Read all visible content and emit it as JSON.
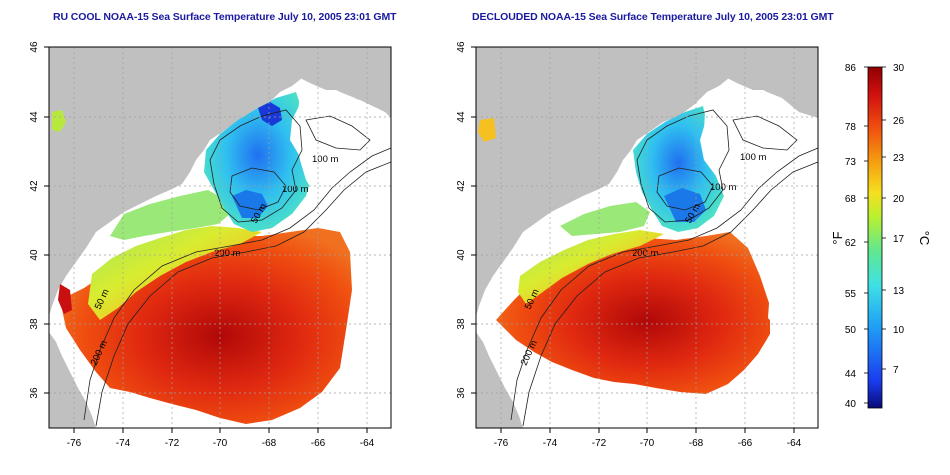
{
  "panels": [
    {
      "title": "RU COOL NOAA-15 Sea Surface Temperature July 10, 2005 23:01 GMT",
      "x_ticks": [
        "-76",
        "-74",
        "-72",
        "-70",
        "-68",
        "-66",
        "-64"
      ],
      "y_ticks": [
        "46",
        "44",
        "42",
        "40",
        "38",
        "36"
      ],
      "contour_labels": [
        "100 m",
        "100 m",
        "50 m",
        "200 m",
        "50 m",
        "200 m"
      ]
    },
    {
      "title": "DECLOUDED NOAA-15 Sea Surface Temperature July 10, 2005 23:01 GMT",
      "x_ticks": [
        "-76",
        "-74",
        "-72",
        "-70",
        "-68",
        "-66",
        "-64"
      ],
      "y_ticks": [
        "46",
        "44",
        "42",
        "40",
        "38",
        "36"
      ],
      "contour_labels": [
        "100 m",
        "100 m",
        "50 m",
        "200 m",
        "50 m",
        "200 m"
      ]
    }
  ],
  "colorbar": {
    "f_ticks": [
      "86",
      "78",
      "73",
      "68",
      "62",
      "55",
      "50",
      "44",
      "40"
    ],
    "c_ticks": [
      "30",
      "26",
      "23",
      "20",
      "17",
      "13",
      "10",
      "7"
    ],
    "f_label": "°F",
    "c_label": "°C",
    "colors": [
      "#0a0a78",
      "#1a3cf0",
      "#1fa0f5",
      "#3ee0e6",
      "#60e890",
      "#b8f030",
      "#f5e020",
      "#f5a010",
      "#f05010",
      "#d01010",
      "#900000"
    ]
  },
  "colors": {
    "land": "#c0c0c0",
    "title": "#1a1aa0",
    "grid": "#b0b0b0"
  }
}
